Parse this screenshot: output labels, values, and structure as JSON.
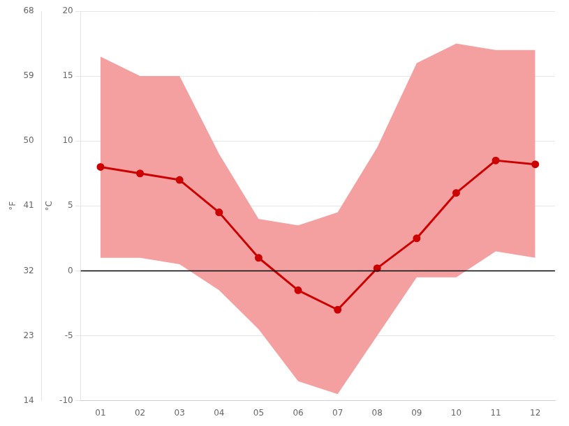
{
  "chart_data": {
    "type": "line",
    "categories": [
      "01",
      "02",
      "03",
      "04",
      "05",
      "06",
      "07",
      "08",
      "09",
      "10",
      "11",
      "12"
    ],
    "series": [
      {
        "type": "band",
        "lower": [
          1.0,
          1.0,
          0.5,
          -1.5,
          -4.5,
          -8.5,
          -9.5,
          -5.0,
          -0.5,
          -0.5,
          1.5,
          1.0
        ],
        "upper": [
          16.5,
          15.0,
          15.0,
          9.0,
          4.0,
          3.5,
          4.5,
          9.5,
          16.0,
          17.5,
          17.0,
          17.0
        ],
        "color": "#f5a0a0"
      },
      {
        "type": "line",
        "values": [
          8.0,
          7.5,
          7.0,
          4.5,
          1.0,
          -1.5,
          -3.0,
          0.2,
          2.5,
          6.0,
          8.5,
          8.2
        ],
        "color": "#cc0000",
        "marker": "circle"
      }
    ],
    "hlines": [
      {
        "value": 0,
        "color": "#000000"
      }
    ],
    "ylim": [
      -10,
      20
    ],
    "yticks": [
      -10,
      -5,
      0,
      5,
      10,
      15,
      20
    ],
    "ylabel": "°C",
    "y2lim": [
      14,
      68
    ],
    "y2ticks": [
      14,
      23,
      32,
      41,
      50,
      59,
      68
    ],
    "y2label": "°F",
    "grid": true
  }
}
